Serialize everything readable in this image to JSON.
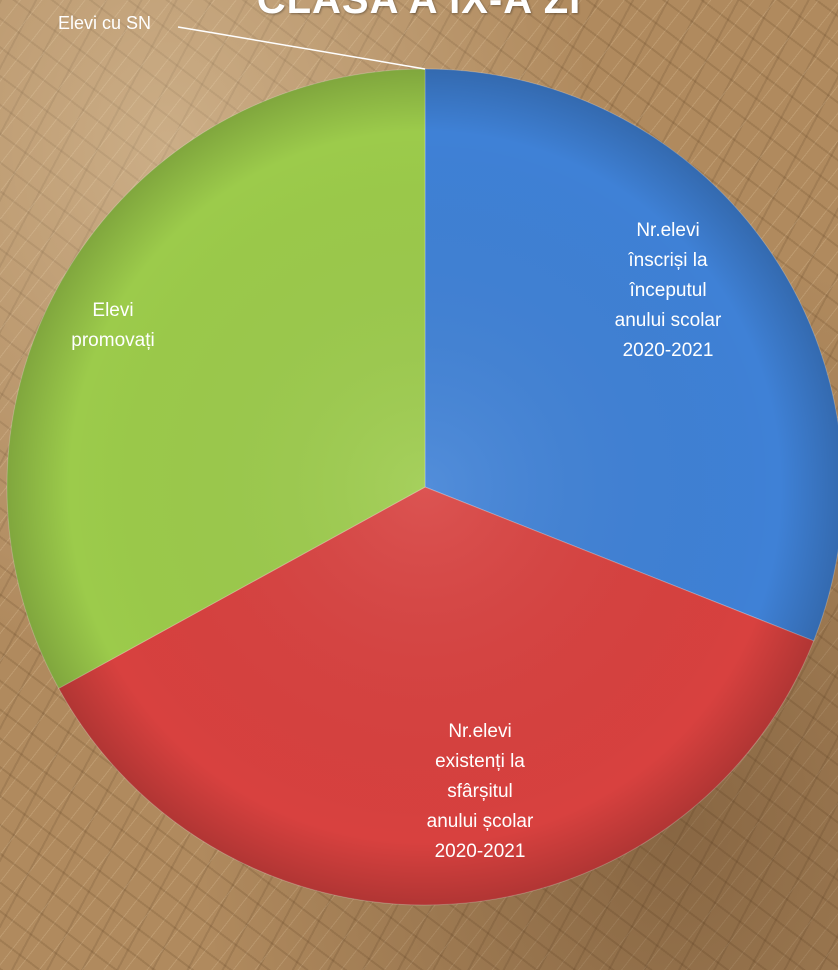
{
  "chart_data": {
    "type": "pie",
    "title": "CLASA A IX-A ZI",
    "slices": [
      {
        "label": "Nr.elevi înscriși  la începutul anului scolar 2020-2021",
        "label_lines": [
          "Nr.elevi",
          "înscriși  la",
          "începutul",
          "anului scolar",
          "2020-2021"
        ],
        "value": 31,
        "color": "#3f81d6"
      },
      {
        "label": "Nr.elevi existenți la sfârșitul anului școlar 2020-2021",
        "label_lines": [
          "Nr.elevi",
          "existenți la",
          "sfârșitul",
          "anului școlar",
          "2020-2021"
        ],
        "value": 36,
        "color": "#d8413f"
      },
      {
        "label": "Elevi promovați",
        "label_lines": [
          "Elevi",
          "promovați"
        ],
        "value": 33,
        "color": "#9ccb4b"
      },
      {
        "label": "Elevi cu SN",
        "label_lines": [
          "Elevi cu SN"
        ],
        "value": 0,
        "color": "#7b5ba6"
      }
    ]
  }
}
